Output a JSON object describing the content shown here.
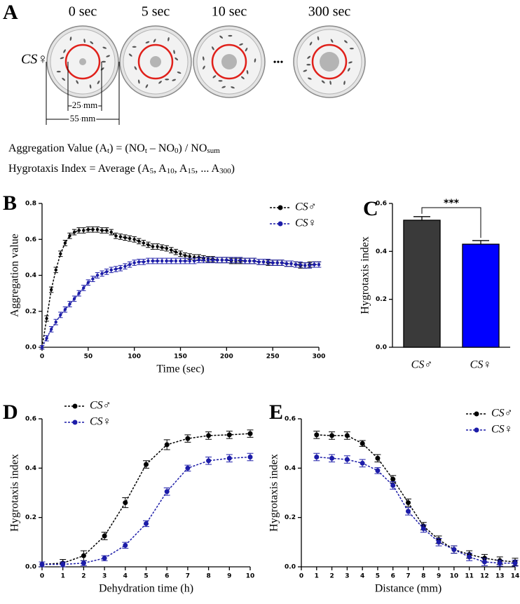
{
  "panel_a": {
    "label": "A",
    "time_labels": [
      "0 sec",
      "5 sec",
      "10 sec",
      "300 sec"
    ],
    "ellipsis": "•••",
    "genotype": "CS♀",
    "inner_diameter": "25 mm",
    "outer_diameter": "55 mm",
    "equations": [
      [
        "Aggregation Value (A",
        "t",
        ") = (NO",
        "t",
        " – NO",
        "0",
        ") / NO",
        "sum"
      ],
      [
        "Hygrotaxis Index = Average (A",
        "5",
        ", A",
        "10",
        ", A",
        "15",
        ", ... A",
        "300",
        ")"
      ]
    ]
  },
  "chart_data": [
    {
      "type": "line",
      "panel": "B",
      "xlabel": "Time (sec)",
      "ylabel": "Aggregation value",
      "legend": "upper right",
      "xlim": [
        0,
        300
      ],
      "xticks": [
        0,
        50,
        100,
        150,
        200,
        250,
        300
      ],
      "ylim": [
        0,
        0.8
      ],
      "yticks": [
        {
          "value": 0,
          "label": "0.0"
        },
        0.2,
        0.4,
        0.6,
        0.8
      ],
      "x": [
        0,
        5,
        10,
        15,
        20,
        25,
        30,
        35,
        40,
        45,
        50,
        55,
        60,
        65,
        70,
        75,
        80,
        85,
        90,
        95,
        100,
        105,
        110,
        115,
        120,
        125,
        130,
        135,
        140,
        145,
        150,
        155,
        160,
        165,
        170,
        175,
        180,
        185,
        190,
        195,
        200,
        205,
        210,
        215,
        220,
        225,
        230,
        235,
        240,
        245,
        250,
        255,
        260,
        265,
        270,
        275,
        280,
        285,
        290,
        295,
        300
      ],
      "series": [
        {
          "name": "CS♂",
          "color": "#000000",
          "values": [
            0,
            0.16,
            0.32,
            0.43,
            0.52,
            0.58,
            0.62,
            0.64,
            0.65,
            0.65,
            0.655,
            0.655,
            0.655,
            0.65,
            0.65,
            0.64,
            0.62,
            0.615,
            0.61,
            0.605,
            0.6,
            0.59,
            0.58,
            0.57,
            0.56,
            0.56,
            0.555,
            0.55,
            0.54,
            0.53,
            0.52,
            0.51,
            0.505,
            0.5,
            0.5,
            0.495,
            0.49,
            0.49,
            0.485,
            0.485,
            0.485,
            0.48,
            0.48,
            0.48,
            0.48,
            0.48,
            0.48,
            0.475,
            0.475,
            0.47,
            0.47,
            0.47,
            0.47,
            0.465,
            0.465,
            0.46,
            0.455,
            0.455,
            0.46,
            0.46,
            0.46
          ],
          "errors": [
            0.01,
            0.015,
            0.015,
            0.015,
            0.015,
            0.015,
            0.015,
            0.015,
            0.015,
            0.015,
            0.015,
            0.015,
            0.015,
            0.015,
            0.015,
            0.015,
            0.015,
            0.015,
            0.015,
            0.015,
            0.015,
            0.015,
            0.015,
            0.015,
            0.015,
            0.015,
            0.015,
            0.015,
            0.015,
            0.015,
            0.015,
            0.015,
            0.015,
            0.015,
            0.015,
            0.015,
            0.015,
            0.015,
            0.015,
            0.015,
            0.015,
            0.015,
            0.015,
            0.015,
            0.015,
            0.015,
            0.015,
            0.015,
            0.015,
            0.015,
            0.015,
            0.015,
            0.015,
            0.015,
            0.015,
            0.015,
            0.015,
            0.015,
            0.015,
            0.015,
            0.015
          ]
        },
        {
          "name": "CS♀",
          "color": "#1c1ca8",
          "values": [
            0,
            0.05,
            0.1,
            0.14,
            0.18,
            0.21,
            0.24,
            0.27,
            0.3,
            0.33,
            0.36,
            0.38,
            0.4,
            0.41,
            0.42,
            0.43,
            0.435,
            0.44,
            0.45,
            0.46,
            0.47,
            0.475,
            0.475,
            0.48,
            0.48,
            0.48,
            0.48,
            0.48,
            0.48,
            0.48,
            0.48,
            0.48,
            0.48,
            0.48,
            0.485,
            0.485,
            0.485,
            0.485,
            0.485,
            0.485,
            0.485,
            0.485,
            0.485,
            0.485,
            0.48,
            0.48,
            0.48,
            0.475,
            0.475,
            0.475,
            0.47,
            0.47,
            0.47,
            0.465,
            0.465,
            0.46,
            0.46,
            0.455,
            0.455,
            0.46,
            0.46
          ],
          "errors": [
            0.01,
            0.015,
            0.015,
            0.015,
            0.015,
            0.015,
            0.015,
            0.015,
            0.015,
            0.015,
            0.015,
            0.015,
            0.015,
            0.015,
            0.015,
            0.015,
            0.015,
            0.015,
            0.015,
            0.015,
            0.015,
            0.015,
            0.015,
            0.015,
            0.015,
            0.015,
            0.015,
            0.015,
            0.015,
            0.015,
            0.015,
            0.015,
            0.015,
            0.015,
            0.015,
            0.015,
            0.015,
            0.015,
            0.015,
            0.015,
            0.015,
            0.015,
            0.015,
            0.015,
            0.015,
            0.015,
            0.015,
            0.015,
            0.015,
            0.015,
            0.015,
            0.015,
            0.015,
            0.015,
            0.015,
            0.015,
            0.015,
            0.015,
            0.015,
            0.015,
            0.015
          ]
        }
      ]
    },
    {
      "type": "bar",
      "panel": "C",
      "ylabel": "Hygrotaxis index",
      "ylim": [
        0,
        0.6
      ],
      "yticks": [
        {
          "value": 0,
          "label": "0.0"
        },
        0.2,
        0.4,
        0.6
      ],
      "categories": [
        "CS♂",
        "CS♀"
      ],
      "values": [
        0.53,
        0.43
      ],
      "errors": [
        0.015,
        0.015
      ],
      "colors": [
        "#3a3a3a",
        "#0000ff"
      ],
      "annotation": "***"
    },
    {
      "type": "line",
      "panel": "D",
      "xlabel": "Dehydration time (h)",
      "ylabel": "Hygrotaxis index",
      "legend": "upper left",
      "xlim": [
        0,
        10
      ],
      "xticks": [
        0,
        1,
        2,
        3,
        4,
        5,
        6,
        7,
        8,
        9,
        10
      ],
      "ylim": [
        0,
        0.6
      ],
      "yticks": [
        {
          "value": 0,
          "label": "0.0"
        },
        0.2,
        0.4,
        0.6
      ],
      "x": [
        0,
        1,
        2,
        3,
        4,
        5,
        6,
        7,
        8,
        9,
        10
      ],
      "series": [
        {
          "name": "CS♂",
          "color": "#000000",
          "values": [
            0.01,
            0.015,
            0.045,
            0.125,
            0.26,
            0.415,
            0.495,
            0.52,
            0.532,
            0.535,
            0.54
          ],
          "errors": [
            0.01,
            0.015,
            0.02,
            0.015,
            0.02,
            0.015,
            0.02,
            0.015,
            0.015,
            0.015,
            0.015
          ]
        },
        {
          "name": "CS♀",
          "color": "#1c1ca8",
          "values": [
            0.01,
            0.01,
            0.015,
            0.035,
            0.087,
            0.175,
            0.305,
            0.4,
            0.43,
            0.44,
            0.445
          ],
          "errors": [
            0.01,
            0.01,
            0.01,
            0.01,
            0.012,
            0.012,
            0.015,
            0.012,
            0.015,
            0.015,
            0.015
          ]
        }
      ]
    },
    {
      "type": "line",
      "panel": "E",
      "xlabel": "Distance (mm)",
      "ylabel": "Hygrotaxis index",
      "legend": "upper right",
      "xlim": [
        0,
        14
      ],
      "xticks": [
        0,
        1,
        2,
        3,
        4,
        5,
        6,
        7,
        8,
        9,
        10,
        11,
        12,
        13,
        14
      ],
      "ylim": [
        0,
        0.6
      ],
      "yticks": [
        {
          "value": 0,
          "label": "0.0"
        },
        0.2,
        0.4,
        0.6
      ],
      "x": [
        1,
        2,
        3,
        4,
        5,
        6,
        7,
        8,
        9,
        10,
        11,
        12,
        13,
        14
      ],
      "series": [
        {
          "name": "CS♂",
          "color": "#000000",
          "values": [
            0.535,
            0.532,
            0.532,
            0.5,
            0.44,
            0.355,
            0.26,
            0.165,
            0.11,
            0.07,
            0.05,
            0.035,
            0.025,
            0.02
          ],
          "errors": [
            0.015,
            0.015,
            0.015,
            0.012,
            0.015,
            0.015,
            0.015,
            0.015,
            0.015,
            0.015,
            0.015,
            0.015,
            0.015,
            0.015
          ]
        },
        {
          "name": "CS♀",
          "color": "#1c1ca8",
          "values": [
            0.445,
            0.44,
            0.435,
            0.42,
            0.39,
            0.33,
            0.225,
            0.155,
            0.1,
            0.07,
            0.04,
            0.02,
            0.015,
            0.015
          ],
          "errors": [
            0.015,
            0.015,
            0.015,
            0.015,
            0.012,
            0.015,
            0.015,
            0.015,
            0.015,
            0.015,
            0.015,
            0.015,
            0.012,
            0.012
          ]
        }
      ]
    }
  ]
}
